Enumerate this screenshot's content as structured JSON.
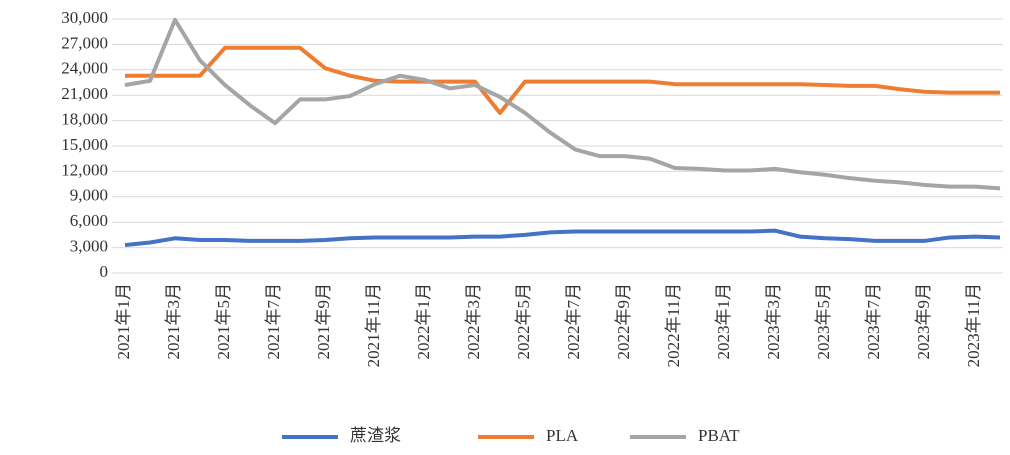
{
  "chart_data": {
    "type": "line",
    "categories": [
      "2021年1月",
      null,
      "2021年3月",
      null,
      "2021年5月",
      null,
      "2021年7月",
      null,
      "2021年9月",
      null,
      "2021年11月",
      null,
      "2022年1月",
      null,
      "2022年3月",
      null,
      "2022年5月",
      null,
      "2022年7月",
      null,
      "2022年9月",
      null,
      "2022年11月",
      null,
      "2023年1月",
      null,
      "2023年3月",
      null,
      "2023年5月",
      null,
      "2023年7月",
      null,
      "2023年9月",
      null,
      "2023年11月",
      null
    ],
    "series": [
      {
        "name": "蔗渣浆",
        "color": "#4472c4",
        "values": [
          3300,
          3600,
          4100,
          3900,
          3900,
          3800,
          3800,
          3800,
          3900,
          4100,
          4200,
          4200,
          4200,
          4200,
          4300,
          4300,
          4500,
          4800,
          4900,
          4900,
          4900,
          4900,
          4900,
          4900,
          4900,
          4900,
          5000,
          4300,
          4100,
          4000,
          3800,
          3800,
          3800,
          4200,
          4300,
          4200
        ]
      },
      {
        "name": "PLA",
        "color": "#ed7d31",
        "values": [
          23300,
          23300,
          23300,
          23300,
          26600,
          26600,
          26600,
          26600,
          24200,
          23300,
          22700,
          22600,
          22600,
          22600,
          22600,
          18900,
          22600,
          22600,
          22600,
          22600,
          22600,
          22600,
          22300,
          22300,
          22300,
          22300,
          22300,
          22300,
          22200,
          22100,
          22100,
          21700,
          21400,
          21300,
          21300,
          21300
        ]
      },
      {
        "name": "PBAT",
        "color": "#a5a5a5",
        "values": [
          22200,
          22700,
          29900,
          25100,
          22200,
          19800,
          17700,
          20500,
          20500,
          20900,
          22300,
          23300,
          22800,
          21800,
          22200,
          20800,
          18900,
          16600,
          14600,
          13800,
          13800,
          13500,
          12400,
          12300,
          12100,
          12100,
          12300,
          11900,
          11600,
          11200,
          10900,
          10700,
          10400,
          10200,
          10200,
          10000
        ]
      }
    ],
    "ylim": [
      0,
      30000
    ],
    "yticks": [
      0,
      {
        "value": 3000,
        "label": "3,000"
      },
      {
        "value": 6000,
        "label": "6,000"
      },
      {
        "value": 9000,
        "label": "9,000"
      },
      {
        "value": 12000,
        "label": "12,000"
      },
      {
        "value": 15000,
        "label": "15,000"
      },
      {
        "value": 18000,
        "label": "18,000"
      },
      {
        "value": 21000,
        "label": "21,000"
      },
      {
        "value": 24000,
        "label": "24,000"
      },
      {
        "value": 27000,
        "label": "27,000"
      },
      {
        "value": 30000,
        "label": "30,000"
      }
    ],
    "grid": true,
    "legend": "bottom"
  }
}
